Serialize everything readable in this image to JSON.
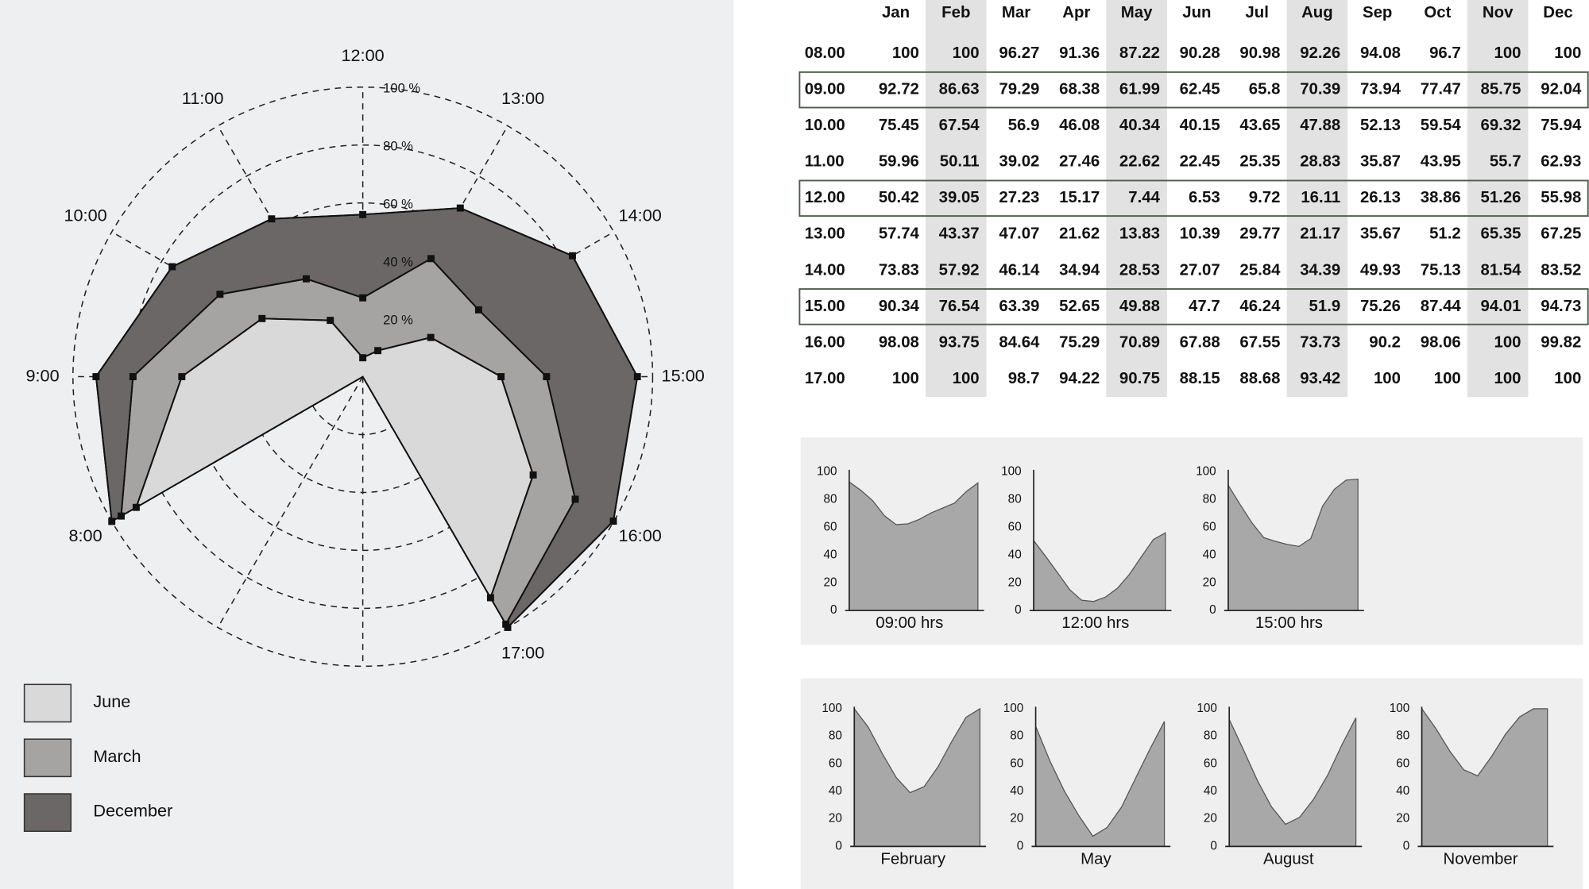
{
  "chart_data": [
    {
      "type": "polar",
      "categories": [
        "8:00",
        "9:00",
        "10:00",
        "11:00",
        "12:00",
        "13:00",
        "14:00",
        "15:00",
        "16:00",
        "17:00"
      ],
      "series": [
        {
          "name": "June",
          "color": "#d9d9d9",
          "values": [
            90.28,
            62.45,
            40.15,
            22.45,
            6.53,
            10.39,
            27.07,
            47.7,
            67.88,
            88.15
          ]
        },
        {
          "name": "March",
          "color": "#a6a3a3",
          "values": [
            96.27,
            79.29,
            56.9,
            39.02,
            27.23,
            47.07,
            46.14,
            63.39,
            84.64,
            98.7
          ]
        },
        {
          "name": "December",
          "color": "#6b6767",
          "values": [
            100,
            92.04,
            75.94,
            62.93,
            55.98,
            67.25,
            83.52,
            94.73,
            99.82,
            100
          ]
        }
      ],
      "rlim": [
        0,
        100
      ],
      "rticks": [
        {
          "value": 20,
          "label": "20 %"
        },
        {
          "value": 40,
          "label": "40 %"
        },
        {
          "value": 60,
          "label": "60 %"
        },
        {
          "value": 80,
          "label": "80 %"
        },
        {
          "value": 100,
          "label": "100 %"
        }
      ],
      "legend": "bottom-left"
    },
    {
      "type": "area",
      "xlabel": "09:00 hrs",
      "color": "#a8a8a8",
      "values": [
        92.72,
        86.63,
        79.29,
        68.38,
        61.99,
        62.45,
        65.8,
        70.39,
        73.94,
        77.47,
        85.75,
        92.04
      ],
      "ylim": [
        0,
        100
      ],
      "yticks": [
        0,
        20,
        40,
        60,
        80,
        100
      ]
    },
    {
      "type": "area",
      "xlabel": "12:00 hrs",
      "color": "#a8a8a8",
      "values": [
        50.42,
        39.05,
        27.23,
        15.17,
        7.44,
        6.53,
        9.72,
        16.11,
        26.13,
        38.86,
        51.26,
        55.98
      ],
      "ylim": [
        0,
        100
      ],
      "yticks": [
        0,
        20,
        40,
        60,
        80,
        100
      ]
    },
    {
      "type": "area",
      "xlabel": "15:00 hrs",
      "color": "#a8a8a8",
      "values": [
        90.34,
        76.54,
        63.39,
        52.65,
        49.88,
        47.7,
        46.24,
        51.9,
        75.26,
        87.44,
        94.01,
        94.73
      ],
      "ylim": [
        0,
        100
      ],
      "yticks": [
        0,
        20,
        40,
        60,
        80,
        100
      ]
    },
    {
      "type": "area",
      "xlabel": "February",
      "color": "#a8a8a8",
      "values": [
        100,
        86.63,
        67.54,
        50.11,
        39.05,
        43.37,
        57.92,
        76.54,
        93.75,
        100
      ],
      "ylim": [
        0,
        100
      ],
      "yticks": [
        0,
        20,
        40,
        60,
        80,
        100
      ]
    },
    {
      "type": "area",
      "xlabel": "May",
      "color": "#a8a8a8",
      "values": [
        87.22,
        61.99,
        40.34,
        22.62,
        7.44,
        13.83,
        28.53,
        49.88,
        70.89,
        90.75
      ],
      "ylim": [
        0,
        100
      ],
      "yticks": [
        0,
        20,
        40,
        60,
        80,
        100
      ]
    },
    {
      "type": "area",
      "xlabel": "August",
      "color": "#a8a8a8",
      "values": [
        92.26,
        70.39,
        47.88,
        28.83,
        16.11,
        21.17,
        34.39,
        51.9,
        73.73,
        93.42
      ],
      "ylim": [
        0,
        100
      ],
      "yticks": [
        0,
        20,
        40,
        60,
        80,
        100
      ]
    },
    {
      "type": "area",
      "xlabel": "November",
      "color": "#a8a8a8",
      "values": [
        100,
        85.75,
        69.32,
        55.7,
        51.26,
        65.35,
        81.54,
        94.01,
        100,
        100
      ],
      "ylim": [
        0,
        100
      ],
      "yticks": [
        0,
        20,
        40,
        60,
        80,
        100
      ]
    }
  ],
  "table": {
    "columns": [
      "Jan",
      "Feb",
      "Mar",
      "Apr",
      "May",
      "Jun",
      "Jul",
      "Aug",
      "Sep",
      "Oct",
      "Nov",
      "Dec"
    ],
    "shaded_columns": [
      1,
      4,
      7,
      10
    ],
    "boxed_rows": [
      1,
      4,
      7
    ],
    "rows": [
      {
        "label": "08.00",
        "cells": [
          100,
          100,
          96.27,
          91.36,
          87.22,
          90.28,
          90.98,
          92.26,
          94.08,
          96.7,
          100,
          100
        ]
      },
      {
        "label": "09.00",
        "cells": [
          92.72,
          86.63,
          79.29,
          68.38,
          61.99,
          62.45,
          65.8,
          70.39,
          73.94,
          77.47,
          85.75,
          92.04
        ]
      },
      {
        "label": "10.00",
        "cells": [
          75.45,
          67.54,
          56.9,
          46.08,
          40.34,
          40.15,
          43.65,
          47.88,
          52.13,
          59.54,
          69.32,
          75.94
        ]
      },
      {
        "label": "11.00",
        "cells": [
          59.96,
          50.11,
          39.02,
          27.46,
          22.62,
          22.45,
          25.35,
          28.83,
          35.87,
          43.95,
          55.7,
          62.93
        ]
      },
      {
        "label": "12.00",
        "cells": [
          50.42,
          39.05,
          27.23,
          15.17,
          7.44,
          6.53,
          9.72,
          16.11,
          26.13,
          38.86,
          51.26,
          55.98
        ]
      },
      {
        "label": "13.00",
        "cells": [
          57.74,
          43.37,
          47.07,
          21.62,
          13.83,
          10.39,
          29.77,
          21.17,
          35.67,
          51.2,
          65.35,
          67.25
        ]
      },
      {
        "label": "14.00",
        "cells": [
          73.83,
          57.92,
          46.14,
          34.94,
          28.53,
          27.07,
          25.84,
          34.39,
          49.93,
          75.13,
          81.54,
          83.52
        ]
      },
      {
        "label": "15.00",
        "cells": [
          90.34,
          76.54,
          63.39,
          52.65,
          49.88,
          47.7,
          46.24,
          51.9,
          75.26,
          87.44,
          94.01,
          94.73
        ]
      },
      {
        "label": "16.00",
        "cells": [
          98.08,
          93.75,
          84.64,
          75.29,
          70.89,
          67.88,
          67.55,
          73.73,
          90.2,
          98.06,
          100,
          99.82
        ]
      },
      {
        "label": "17.00",
        "cells": [
          100,
          100,
          98.7,
          94.22,
          90.75,
          88.15,
          88.68,
          93.42,
          100,
          100,
          100,
          100
        ]
      }
    ]
  }
}
